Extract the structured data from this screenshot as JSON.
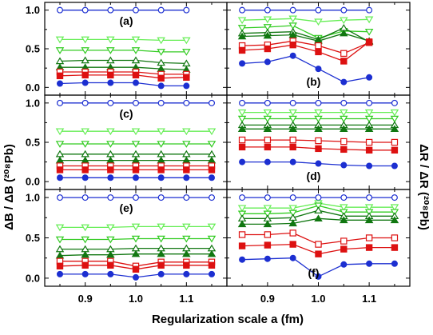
{
  "chart_data": {
    "type": "line",
    "layout": "3 rows x 2 columns, shared x axis",
    "xlabel": "Regularization scale a (fm)",
    "ylabel_left": "ΔB / ΔB (²⁰⁸Pb)",
    "ylabel_right": "ΔR / ΔR (²⁰⁸Pb)",
    "xlim": [
      0.82,
      1.18
    ],
    "ylim": [
      -0.1,
      1.1
    ],
    "xticks": [
      "0.9",
      "1.0",
      "1.1"
    ],
    "yticks": [
      "0.0",
      "0.5",
      "1.0"
    ],
    "marker_styles": {
      "blue-open-circle": "#1c2fd1",
      "light-green-open-triangle-down": "#66ee55",
      "green-open-triangle-down": "#33cc22",
      "darkgreen-open-triangle-up": "#117711",
      "darkgreen-filled-triangle-up": "#117711",
      "red-open-square": "#dd1111",
      "red-filled-square": "#dd1111",
      "blue-filled-circle": "#1c2fd1"
    },
    "panels": [
      {
        "label": "(a)",
        "label_pos": "top-center",
        "x": [
          0.85,
          0.9,
          0.95,
          1.0,
          1.05,
          1.1
        ],
        "series": [
          {
            "style": "blue-open-circle",
            "values": [
              1.0,
              1.0,
              1.0,
              1.0,
              1.0,
              1.0
            ]
          },
          {
            "style": "light-green-open-triangle-down",
            "values": [
              0.62,
              0.62,
              0.62,
              0.62,
              0.61,
              0.61
            ]
          },
          {
            "style": "green-open-triangle-down",
            "values": [
              0.48,
              0.48,
              0.48,
              0.48,
              0.46,
              0.46
            ]
          },
          {
            "style": "darkgreen-open-triangle-up",
            "values": [
              0.34,
              0.35,
              0.35,
              0.35,
              0.32,
              0.31
            ]
          },
          {
            "style": "darkgreen-filled-triangle-up",
            "values": [
              0.26,
              0.26,
              0.26,
              0.26,
              0.24,
              0.23
            ]
          },
          {
            "style": "red-open-square",
            "values": [
              0.2,
              0.2,
              0.2,
              0.2,
              0.17,
              0.17
            ]
          },
          {
            "style": "red-filled-square",
            "values": [
              0.15,
              0.16,
              0.16,
              0.16,
              0.12,
              0.13
            ]
          },
          {
            "style": "blue-filled-circle",
            "values": [
              0.05,
              0.06,
              0.06,
              0.06,
              0.02,
              0.02
            ]
          }
        ]
      },
      {
        "label": "(b)",
        "label_pos": "bottom-center",
        "x": [
          0.85,
          0.9,
          0.95,
          1.0,
          1.05,
          1.1
        ],
        "series": [
          {
            "style": "blue-open-circle",
            "values": [
              1.0,
              1.0,
              1.0,
              1.0,
              1.0,
              1.0
            ]
          },
          {
            "style": "light-green-open-triangle-down",
            "values": [
              0.87,
              0.88,
              0.89,
              0.85,
              0.87,
              0.88
            ]
          },
          {
            "style": "green-open-triangle-down",
            "values": [
              0.77,
              0.78,
              0.8,
              0.64,
              0.73,
              0.72
            ]
          },
          {
            "style": "darkgreen-open-triangle-up",
            "values": [
              0.7,
              0.71,
              0.72,
              0.62,
              0.77,
              0.59
            ]
          },
          {
            "style": "darkgreen-filled-triangle-up",
            "values": [
              0.66,
              0.67,
              0.68,
              0.6,
              0.7,
              0.6
            ]
          },
          {
            "style": "red-open-square",
            "values": [
              0.54,
              0.55,
              0.6,
              0.54,
              0.44,
              0.58
            ]
          },
          {
            "style": "red-filled-square",
            "values": [
              0.48,
              0.5,
              0.55,
              0.46,
              0.34,
              0.59
            ]
          },
          {
            "style": "blue-filled-circle",
            "values": [
              0.31,
              0.33,
              0.41,
              0.24,
              0.07,
              0.13
            ]
          }
        ]
      },
      {
        "label": "(c)",
        "label_pos": "top-center",
        "x": [
          0.85,
          0.9,
          0.95,
          1.0,
          1.05,
          1.1,
          1.15
        ],
        "series": [
          {
            "style": "blue-open-circle",
            "values": [
              1.0,
              1.0,
              1.0,
              1.0,
              1.0,
              1.0,
              1.0
            ]
          },
          {
            "style": "light-green-open-triangle-down",
            "values": [
              0.64,
              0.64,
              0.64,
              0.64,
              0.64,
              0.64,
              0.64
            ]
          },
          {
            "style": "green-open-triangle-down",
            "values": [
              0.48,
              0.48,
              0.48,
              0.48,
              0.48,
              0.48,
              0.48
            ]
          },
          {
            "style": "darkgreen-open-triangle-up",
            "values": [
              0.35,
              0.35,
              0.35,
              0.35,
              0.35,
              0.35,
              0.35
            ]
          },
          {
            "style": "darkgreen-filled-triangle-up",
            "values": [
              0.27,
              0.27,
              0.27,
              0.27,
              0.27,
              0.27,
              0.27
            ]
          },
          {
            "style": "red-open-square",
            "values": [
              0.2,
              0.2,
              0.2,
              0.2,
              0.2,
              0.2,
              0.2
            ]
          },
          {
            "style": "red-filled-square",
            "values": [
              0.15,
              0.15,
              0.15,
              0.15,
              0.15,
              0.15,
              0.15
            ]
          },
          {
            "style": "blue-filled-circle",
            "values": [
              0.05,
              0.05,
              0.05,
              0.05,
              0.05,
              0.05,
              0.05
            ]
          }
        ]
      },
      {
        "label": "(d)",
        "label_pos": "bottom-center",
        "x": [
          0.85,
          0.9,
          0.95,
          1.0,
          1.05,
          1.1,
          1.15
        ],
        "series": [
          {
            "style": "blue-open-circle",
            "values": [
              1.0,
              1.0,
              1.0,
              1.0,
              1.0,
              1.0,
              1.0
            ]
          },
          {
            "style": "light-green-open-triangle-down",
            "values": [
              0.88,
              0.88,
              0.88,
              0.88,
              0.88,
              0.88,
              0.88
            ]
          },
          {
            "style": "green-open-triangle-down",
            "values": [
              0.8,
              0.8,
              0.8,
              0.8,
              0.8,
              0.8,
              0.8
            ]
          },
          {
            "style": "darkgreen-open-triangle-up",
            "values": [
              0.72,
              0.72,
              0.72,
              0.72,
              0.72,
              0.72,
              0.72
            ]
          },
          {
            "style": "darkgreen-filled-triangle-up",
            "values": [
              0.67,
              0.67,
              0.67,
              0.67,
              0.67,
              0.67,
              0.67
            ]
          },
          {
            "style": "red-open-square",
            "values": [
              0.53,
              0.53,
              0.53,
              0.52,
              0.51,
              0.5,
              0.5
            ]
          },
          {
            "style": "red-filled-square",
            "values": [
              0.44,
              0.44,
              0.44,
              0.42,
              0.41,
              0.4,
              0.4
            ]
          },
          {
            "style": "blue-filled-circle",
            "values": [
              0.25,
              0.25,
              0.25,
              0.23,
              0.21,
              0.2,
              0.2
            ]
          }
        ]
      },
      {
        "label": "(e)",
        "label_pos": "top-center",
        "x": [
          0.85,
          0.9,
          0.95,
          1.0,
          1.05,
          1.1,
          1.15
        ],
        "series": [
          {
            "style": "blue-open-circle",
            "values": [
              1.0,
              1.0,
              1.0,
              1.0,
              1.0,
              1.0,
              1.0
            ]
          },
          {
            "style": "light-green-open-triangle-down",
            "values": [
              0.63,
              0.63,
              0.63,
              0.64,
              0.64,
              0.64,
              0.64
            ]
          },
          {
            "style": "green-open-triangle-down",
            "values": [
              0.48,
              0.48,
              0.48,
              0.49,
              0.49,
              0.49,
              0.49
            ]
          },
          {
            "style": "darkgreen-open-triangle-up",
            "values": [
              0.36,
              0.36,
              0.36,
              0.37,
              0.37,
              0.37,
              0.37
            ]
          },
          {
            "style": "darkgreen-filled-triangle-up",
            "values": [
              0.28,
              0.29,
              0.29,
              0.3,
              0.3,
              0.3,
              0.3
            ]
          },
          {
            "style": "red-open-square",
            "values": [
              0.21,
              0.21,
              0.21,
              0.15,
              0.2,
              0.2,
              0.2
            ]
          },
          {
            "style": "red-filled-square",
            "values": [
              0.15,
              0.16,
              0.16,
              0.11,
              0.16,
              0.16,
              0.16
            ]
          },
          {
            "style": "blue-filled-circle",
            "values": [
              0.05,
              0.05,
              0.05,
              0.01,
              0.05,
              0.05,
              0.05
            ]
          }
        ]
      },
      {
        "label": "(f)",
        "label_pos": "bottom-center",
        "x": [
          0.85,
          0.9,
          0.95,
          1.0,
          1.05,
          1.1,
          1.15
        ],
        "series": [
          {
            "style": "blue-open-circle",
            "values": [
              1.0,
              1.0,
              1.0,
              1.0,
              1.0,
              1.0,
              1.0
            ]
          },
          {
            "style": "light-green-open-triangle-down",
            "values": [
              0.87,
              0.87,
              0.87,
              0.93,
              0.88,
              0.88,
              0.88
            ]
          },
          {
            "style": "green-open-triangle-down",
            "values": [
              0.8,
              0.8,
              0.81,
              0.9,
              0.82,
              0.82,
              0.82
            ]
          },
          {
            "style": "darkgreen-open-triangle-up",
            "values": [
              0.74,
              0.74,
              0.75,
              0.84,
              0.77,
              0.77,
              0.77
            ]
          },
          {
            "style": "darkgreen-filled-triangle-up",
            "values": [
              0.67,
              0.67,
              0.68,
              0.74,
              0.72,
              0.72,
              0.72
            ]
          },
          {
            "style": "red-open-square",
            "values": [
              0.54,
              0.54,
              0.56,
              0.42,
              0.46,
              0.5,
              0.5
            ]
          },
          {
            "style": "red-filled-square",
            "values": [
              0.4,
              0.41,
              0.42,
              0.3,
              0.36,
              0.38,
              0.38
            ]
          },
          {
            "style": "blue-filled-circle",
            "values": [
              0.23,
              0.24,
              0.25,
              0.02,
              0.17,
              0.18,
              0.18
            ]
          }
        ]
      }
    ]
  }
}
